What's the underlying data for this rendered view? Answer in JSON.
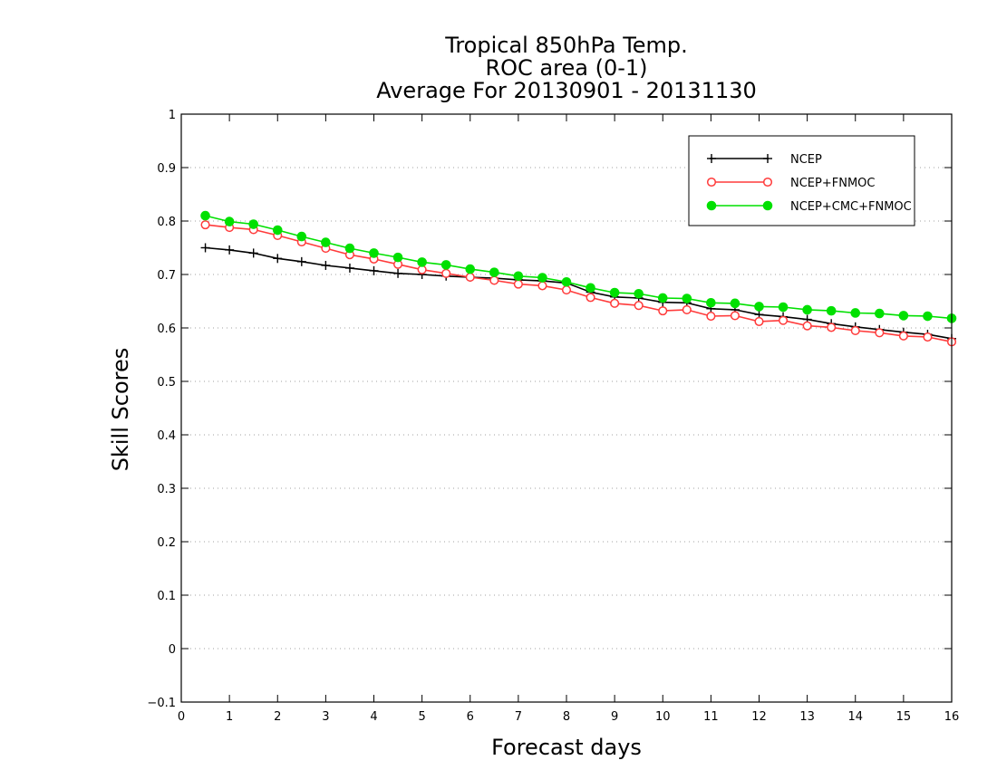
{
  "chart_data": {
    "type": "line",
    "title_lines": [
      "Tropical 850hPa Temp.",
      "ROC area (0-1)",
      "Average For 20130901 - 20131130"
    ],
    "xlabel": "Forecast days",
    "ylabel": "Skill Scores",
    "xlim": [
      0,
      16
    ],
    "ylim": [
      -0.1,
      1
    ],
    "x_ticks": [
      0,
      1,
      2,
      3,
      4,
      5,
      6,
      7,
      8,
      9,
      10,
      11,
      12,
      13,
      14,
      15,
      16
    ],
    "x_tick_labels": [
      "0",
      "1",
      "2",
      "3",
      "4",
      "5",
      "6",
      "7",
      "8",
      "9",
      "10",
      "11",
      "12",
      "13",
      "14",
      "15",
      "16"
    ],
    "y_ticks": [
      -0.1,
      0,
      0.1,
      0.2,
      0.3,
      0.4,
      0.5,
      0.6,
      0.7,
      0.8,
      0.9,
      1
    ],
    "y_tick_labels": [
      "−0.1",
      "0",
      "0.1",
      "0.2",
      "0.3",
      "0.4",
      "0.5",
      "0.6",
      "0.7",
      "0.8",
      "0.9",
      "1"
    ],
    "grid": "horizontal-dotted",
    "legend_position": "top-right",
    "x": [
      0.5,
      1,
      1.5,
      2,
      2.5,
      3,
      3.5,
      4,
      4.5,
      5,
      5.5,
      6,
      6.5,
      7,
      7.5,
      8,
      8.5,
      9,
      9.5,
      10,
      10.5,
      11,
      11.5,
      12,
      12.5,
      13,
      13.5,
      14,
      14.5,
      15,
      15.5,
      16
    ],
    "series": [
      {
        "name": "NCEP",
        "color": "#000000",
        "marker": "plus",
        "values": [
          0.75,
          0.746,
          0.74,
          0.73,
          0.724,
          0.717,
          0.712,
          0.707,
          0.702,
          0.7,
          0.697,
          0.695,
          0.693,
          0.69,
          0.688,
          0.684,
          0.667,
          0.658,
          0.656,
          0.648,
          0.647,
          0.636,
          0.634,
          0.625,
          0.621,
          0.616,
          0.608,
          0.602,
          0.597,
          0.592,
          0.588,
          0.58
        ]
      },
      {
        "name": "NCEP+FNMOC",
        "color": "#ff3b3b",
        "marker": "open-circle",
        "values": [
          0.793,
          0.788,
          0.784,
          0.773,
          0.761,
          0.749,
          0.737,
          0.729,
          0.719,
          0.709,
          0.702,
          0.695,
          0.689,
          0.682,
          0.679,
          0.671,
          0.657,
          0.646,
          0.642,
          0.632,
          0.634,
          0.622,
          0.623,
          0.612,
          0.614,
          0.604,
          0.601,
          0.595,
          0.591,
          0.585,
          0.583,
          0.574
        ]
      },
      {
        "name": "NCEP+CMC+FNMOC",
        "color": "#00e000",
        "marker": "filled-circle",
        "values": [
          0.81,
          0.799,
          0.794,
          0.783,
          0.771,
          0.76,
          0.749,
          0.74,
          0.732,
          0.723,
          0.718,
          0.71,
          0.704,
          0.697,
          0.694,
          0.686,
          0.675,
          0.666,
          0.664,
          0.656,
          0.655,
          0.647,
          0.646,
          0.64,
          0.639,
          0.634,
          0.632,
          0.628,
          0.627,
          0.623,
          0.622,
          0.618
        ]
      }
    ]
  }
}
